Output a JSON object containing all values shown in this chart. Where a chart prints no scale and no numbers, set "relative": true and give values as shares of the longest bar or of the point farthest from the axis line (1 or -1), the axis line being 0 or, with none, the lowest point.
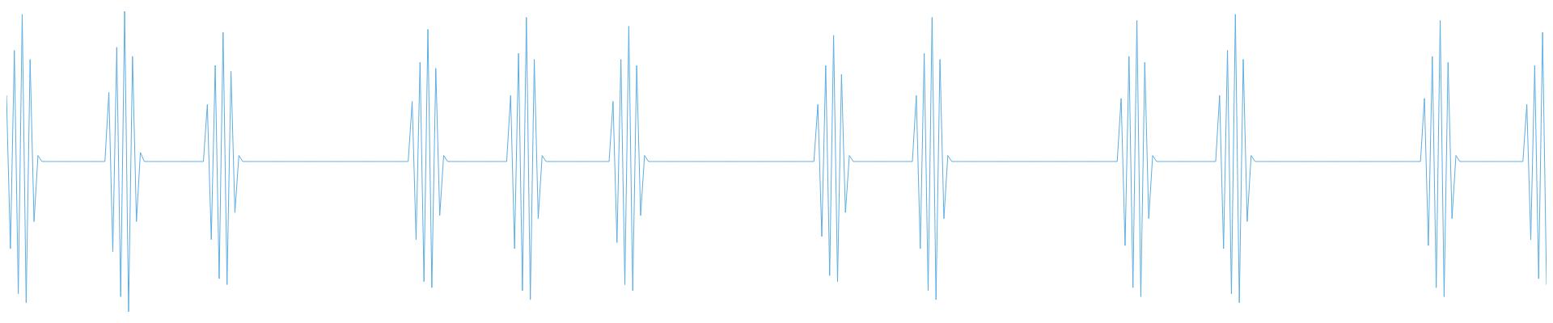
{
  "chart_data": {
    "type": "line",
    "relative": true,
    "legend": false,
    "marker": "none",
    "line_style": "solid",
    "categories": [
      null,
      null,
      null,
      null,
      null,
      null,
      null,
      null,
      null,
      null,
      null,
      null,
      null,
      null,
      null,
      null,
      null,
      null,
      null,
      null,
      null,
      null,
      null,
      null,
      null,
      null,
      null,
      null,
      null,
      null,
      null,
      null,
      null,
      null,
      null,
      null,
      null,
      null,
      null,
      null,
      null,
      null,
      null,
      null,
      null,
      null,
      null,
      null,
      null,
      null,
      null,
      null,
      null,
      null,
      null,
      null,
      null,
      null,
      null,
      null,
      null,
      null,
      null,
      null,
      null,
      null,
      null,
      null,
      null,
      null,
      null,
      null,
      null,
      null,
      null,
      null,
      null,
      null,
      null,
      null,
      null,
      null,
      null,
      null,
      null,
      null,
      null,
      null,
      null,
      null,
      null,
      null,
      null,
      null,
      null,
      null,
      null,
      null,
      null,
      null,
      null,
      null,
      null,
      null,
      null,
      null,
      null,
      null,
      null,
      null,
      null,
      null,
      null,
      null,
      null,
      null,
      null,
      null,
      null,
      null,
      null,
      null,
      null,
      null,
      null,
      null,
      null,
      null,
      null,
      null,
      null,
      null,
      null,
      null,
      null,
      null,
      null,
      null,
      null,
      null,
      null,
      null,
      null,
      null,
      null,
      null,
      null,
      null,
      null,
      null,
      null,
      null,
      null,
      null,
      null,
      null,
      null,
      null,
      null,
      null,
      null,
      null,
      null,
      null,
      null,
      null,
      null,
      null,
      null,
      null,
      null,
      null,
      null,
      null,
      null,
      null,
      null,
      null,
      null,
      null,
      null,
      null,
      null,
      null,
      null,
      null,
      null,
      null,
      null,
      null,
      null,
      null,
      null,
      null,
      null,
      null,
      null,
      null,
      null,
      null,
      null,
      null,
      null,
      null,
      null,
      null,
      null,
      null,
      null,
      null,
      null,
      null,
      null,
      null,
      null,
      null,
      null,
      null,
      null,
      null,
      null,
      null,
      null,
      null,
      null,
      null,
      null,
      null,
      null,
      null,
      null,
      null,
      null,
      null,
      null,
      null,
      null,
      null,
      null,
      null,
      null,
      null,
      null,
      null,
      null,
      null,
      null,
      null,
      null,
      null,
      null,
      null,
      null,
      null,
      null,
      null,
      null,
      null,
      null,
      null,
      null,
      null,
      null,
      null,
      null,
      null,
      null,
      null,
      null,
      null,
      null,
      null,
      null,
      null,
      null,
      null,
      null,
      null,
      null,
      null,
      null,
      null,
      null,
      null,
      null,
      null,
      null,
      null,
      null,
      null,
      null,
      null,
      null,
      null,
      null,
      null,
      null,
      null,
      null,
      null,
      null,
      null,
      null,
      null,
      null,
      null,
      null,
      null,
      null,
      null,
      null,
      null,
      null,
      null,
      null,
      null,
      null,
      null,
      null,
      null,
      null,
      null,
      null,
      null,
      null,
      null,
      null,
      null,
      null,
      null,
      null,
      null,
      null,
      null,
      null,
      null,
      null,
      null,
      null,
      null,
      null,
      null,
      null,
      null,
      null,
      null,
      null,
      null,
      null,
      null,
      null,
      null,
      null,
      null,
      null,
      null,
      null,
      null,
      null,
      null,
      null,
      null,
      null,
      null,
      null,
      null,
      null,
      null,
      null,
      null,
      null,
      null,
      null,
      null,
      null,
      null,
      null,
      null,
      null,
      null,
      null,
      null,
      null,
      null,
      null,
      null,
      null,
      null,
      null,
      null,
      null,
      null
    ],
    "series": [
      {
        "color": "#5dade2",
        "values": [
          0.72,
          0.21,
          0.87,
          0.06,
          0.99,
          0.03,
          0.84,
          0.3,
          0.52,
          0.5,
          0.5,
          0.5,
          0.5,
          0.5,
          0.5,
          0.5,
          0.5,
          0.5,
          0.5,
          0.5,
          0.5,
          0.5,
          0.5,
          0.5,
          0.5,
          0.5,
          0.73,
          0.2,
          0.88,
          0.05,
          1,
          0,
          0.85,
          0.3,
          0.53,
          0.5,
          0.5,
          0.5,
          0.5,
          0.5,
          0.5,
          0.5,
          0.5,
          0.5,
          0.5,
          0.5,
          0.5,
          0.5,
          0.5,
          0.5,
          0.5,
          0.69,
          0.24,
          0.82,
          0.11,
          0.93,
          0.09,
          0.8,
          0.33,
          0.52,
          0.5,
          0.5,
          0.5,
          0.5,
          0.5,
          0.5,
          0.5,
          0.5,
          0.5,
          0.5,
          0.5,
          0.5,
          0.5,
          0.5,
          0.5,
          0.5,
          0.5,
          0.5,
          0.5,
          0.5,
          0.5,
          0.5,
          0.5,
          0.5,
          0.5,
          0.5,
          0.5,
          0.5,
          0.5,
          0.5,
          0.5,
          0.5,
          0.5,
          0.5,
          0.5,
          0.5,
          0.5,
          0.5,
          0.5,
          0.5,
          0.5,
          0.5,
          0.5,
          0.7,
          0.24,
          0.83,
          0.1,
          0.94,
          0.08,
          0.81,
          0.32,
          0.52,
          0.5,
          0.5,
          0.5,
          0.5,
          0.5,
          0.5,
          0.5,
          0.5,
          0.5,
          0.5,
          0.5,
          0.5,
          0.5,
          0.5,
          0.5,
          0.5,
          0.72,
          0.21,
          0.86,
          0.07,
          0.98,
          0.04,
          0.84,
          0.31,
          0.52,
          0.5,
          0.5,
          0.5,
          0.5,
          0.5,
          0.5,
          0.5,
          0.5,
          0.5,
          0.5,
          0.5,
          0.5,
          0.5,
          0.5,
          0.5,
          0.5,
          0.5,
          0.7,
          0.23,
          0.84,
          0.09,
          0.95,
          0.07,
          0.82,
          0.32,
          0.52,
          0.5,
          0.5,
          0.5,
          0.5,
          0.5,
          0.5,
          0.5,
          0.5,
          0.5,
          0.5,
          0.5,
          0.5,
          0.5,
          0.5,
          0.5,
          0.5,
          0.5,
          0.5,
          0.5,
          0.5,
          0.5,
          0.5,
          0.5,
          0.5,
          0.5,
          0.5,
          0.5,
          0.5,
          0.5,
          0.5,
          0.5,
          0.5,
          0.5,
          0.5,
          0.5,
          0.5,
          0.5,
          0.5,
          0.5,
          0.5,
          0.5,
          0.5,
          0.5,
          0.69,
          0.25,
          0.82,
          0.12,
          0.92,
          0.1,
          0.79,
          0.33,
          0.52,
          0.5,
          0.5,
          0.5,
          0.5,
          0.5,
          0.5,
          0.5,
          0.5,
          0.5,
          0.5,
          0.5,
          0.5,
          0.5,
          0.5,
          0.5,
          0.5,
          0.72,
          0.21,
          0.86,
          0.07,
          0.98,
          0.04,
          0.84,
          0.31,
          0.52,
          0.5,
          0.5,
          0.5,
          0.5,
          0.5,
          0.5,
          0.5,
          0.5,
          0.5,
          0.5,
          0.5,
          0.5,
          0.5,
          0.5,
          0.5,
          0.5,
          0.5,
          0.5,
          0.5,
          0.5,
          0.5,
          0.5,
          0.5,
          0.5,
          0.5,
          0.5,
          0.5,
          0.5,
          0.5,
          0.5,
          0.5,
          0.5,
          0.5,
          0.5,
          0.5,
          0.5,
          0.5,
          0.5,
          0.5,
          0.5,
          0.5,
          0.5,
          0.5,
          0.71,
          0.22,
          0.85,
          0.08,
          0.97,
          0.05,
          0.83,
          0.31,
          0.52,
          0.5,
          0.5,
          0.5,
          0.5,
          0.5,
          0.5,
          0.5,
          0.5,
          0.5,
          0.5,
          0.5,
          0.5,
          0.5,
          0.5,
          0.5,
          0.5,
          0.72,
          0.21,
          0.87,
          0.06,
          0.99,
          0.03,
          0.84,
          0.3,
          0.52,
          0.5,
          0.5,
          0.5,
          0.5,
          0.5,
          0.5,
          0.5,
          0.5,
          0.5,
          0.5,
          0.5,
          0.5,
          0.5,
          0.5,
          0.5,
          0.5,
          0.5,
          0.5,
          0.5,
          0.5,
          0.5,
          0.5,
          0.5,
          0.5,
          0.5,
          0.5,
          0.5,
          0.5,
          0.5,
          0.5,
          0.5,
          0.5,
          0.5,
          0.5,
          0.5,
          0.5,
          0.5,
          0.5,
          0.5,
          0.5,
          0.5,
          0.5,
          0.5,
          0.71,
          0.22,
          0.85,
          0.08,
          0.97,
          0.05,
          0.83,
          0.31,
          0.52,
          0.5,
          0.5,
          0.5,
          0.5,
          0.5,
          0.5,
          0.5,
          0.5,
          0.5,
          0.5,
          0.5,
          0.5,
          0.5,
          0.5,
          0.5,
          0.5,
          0.5,
          0.69,
          0.24,
          0.82,
          0.11,
          0.93,
          0.09
        ]
      }
    ]
  }
}
